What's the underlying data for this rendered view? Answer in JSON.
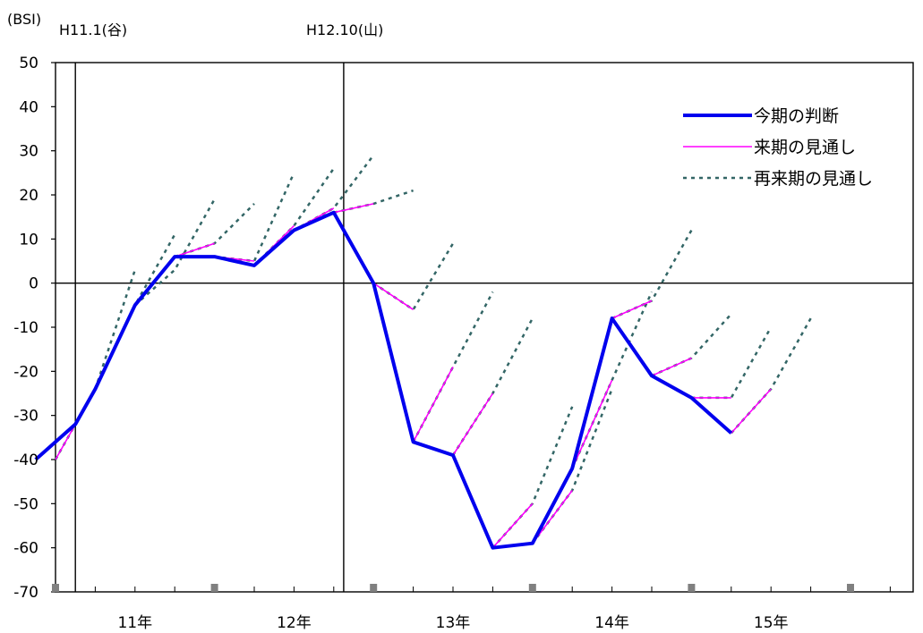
{
  "chart_data": {
    "type": "line",
    "ylabel": "(BSI)",
    "ylim": [
      -70,
      50
    ],
    "yticks": [
      50,
      40,
      30,
      20,
      10,
      0,
      -10,
      -20,
      -30,
      -40,
      -50,
      -60,
      -70
    ],
    "year_labels": [
      "11年",
      "12年",
      "13年",
      "14年",
      "15年"
    ],
    "markers": [
      {
        "label": "H11.1(谷)",
        "quarter": 0.5
      },
      {
        "label": "H12.10(山)",
        "quarter": 7.25
      }
    ],
    "legend_position": "top-right",
    "series": [
      {
        "name": "今期の判断",
        "color": "#0000ee",
        "style": "solid-thick",
        "points": [
          [
            -0.5,
            -40
          ],
          [
            0.5,
            -32
          ],
          [
            1,
            -24
          ],
          [
            2,
            -5
          ],
          [
            3,
            6
          ],
          [
            4,
            6
          ],
          [
            5,
            4
          ],
          [
            6,
            12
          ],
          [
            7,
            16
          ],
          [
            8,
            0
          ],
          [
            9,
            -36
          ],
          [
            10,
            -39
          ],
          [
            11,
            -60
          ],
          [
            12,
            -59
          ],
          [
            13,
            -42
          ],
          [
            14,
            -8
          ],
          [
            15,
            -21
          ],
          [
            16,
            -26
          ],
          [
            17,
            -34
          ]
        ]
      },
      {
        "name": "来期の見通し",
        "color": "#ff00ff",
        "style": "solid-thin",
        "segments": [
          [
            [
              0,
              -40
            ],
            [
              1,
              -24
            ]
          ],
          [
            [
              1,
              -24
            ],
            [
              2,
              -5
            ]
          ],
          [
            [
              2,
              -5
            ],
            [
              3,
              6
            ]
          ],
          [
            [
              3,
              6
            ],
            [
              4,
              9
            ]
          ],
          [
            [
              4,
              6
            ],
            [
              5,
              5
            ]
          ],
          [
            [
              5,
              4
            ],
            [
              6,
              13
            ]
          ],
          [
            [
              6,
              12
            ],
            [
              7,
              17
            ]
          ],
          [
            [
              7,
              16
            ],
            [
              8,
              18
            ]
          ],
          [
            [
              8,
              0
            ],
            [
              9,
              -6
            ]
          ],
          [
            [
              9,
              -36
            ],
            [
              10,
              -19
            ]
          ],
          [
            [
              10,
              -39
            ],
            [
              11,
              -25
            ]
          ],
          [
            [
              11,
              -60
            ],
            [
              12,
              -50
            ]
          ],
          [
            [
              12,
              -59
            ],
            [
              13,
              -47
            ]
          ],
          [
            [
              13,
              -42
            ],
            [
              14,
              -22
            ]
          ],
          [
            [
              14,
              -8
            ],
            [
              15,
              -4
            ]
          ],
          [
            [
              15,
              -21
            ],
            [
              16,
              -17
            ]
          ],
          [
            [
              16,
              -26
            ],
            [
              17,
              -26
            ]
          ],
          [
            [
              17,
              -34
            ],
            [
              18,
              -24
            ]
          ]
        ]
      },
      {
        "name": "再来期の見通し",
        "color": "#336666",
        "style": "dotted",
        "segments": [
          [
            [
              0,
              -40
            ],
            [
              1,
              -24
            ],
            [
              2,
              3
            ]
          ],
          [
            [
              1,
              -24
            ],
            [
              2,
              -5
            ],
            [
              3,
              11
            ]
          ],
          [
            [
              2,
              -5
            ],
            [
              3,
              3
            ],
            [
              4,
              19
            ]
          ],
          [
            [
              3,
              6
            ],
            [
              4,
              9
            ],
            [
              5,
              18
            ]
          ],
          [
            [
              4,
              6
            ],
            [
              5,
              5
            ],
            [
              6,
              25
            ]
          ],
          [
            [
              5,
              4
            ],
            [
              6,
              13
            ],
            [
              7,
              26
            ]
          ],
          [
            [
              6,
              12
            ],
            [
              7,
              17
            ],
            [
              8,
              29
            ]
          ],
          [
            [
              7,
              16
            ],
            [
              8,
              18
            ],
            [
              9,
              21
            ]
          ],
          [
            [
              8,
              0
            ],
            [
              9,
              -6
            ],
            [
              10,
              9
            ]
          ],
          [
            [
              9,
              -36
            ],
            [
              10,
              -19
            ],
            [
              11,
              -2
            ]
          ],
          [
            [
              10,
              -39
            ],
            [
              11,
              -25
            ],
            [
              12,
              -8
            ]
          ],
          [
            [
              11,
              -60
            ],
            [
              12,
              -50
            ],
            [
              13,
              -28
            ]
          ],
          [
            [
              12,
              -59
            ],
            [
              13,
              -47
            ],
            [
              14,
              -24
            ]
          ],
          [
            [
              13,
              -42
            ],
            [
              14,
              -22
            ],
            [
              15,
              -2
            ]
          ],
          [
            [
              14,
              -8
            ],
            [
              15,
              -4
            ],
            [
              16,
              12
            ]
          ],
          [
            [
              15,
              -21
            ],
            [
              16,
              -17
            ],
            [
              17,
              -7
            ]
          ],
          [
            [
              16,
              -26
            ],
            [
              17,
              -26
            ],
            [
              18,
              -10
            ]
          ],
          [
            [
              17,
              -34
            ],
            [
              18,
              -24
            ],
            [
              19,
              -8
            ]
          ]
        ]
      }
    ]
  }
}
